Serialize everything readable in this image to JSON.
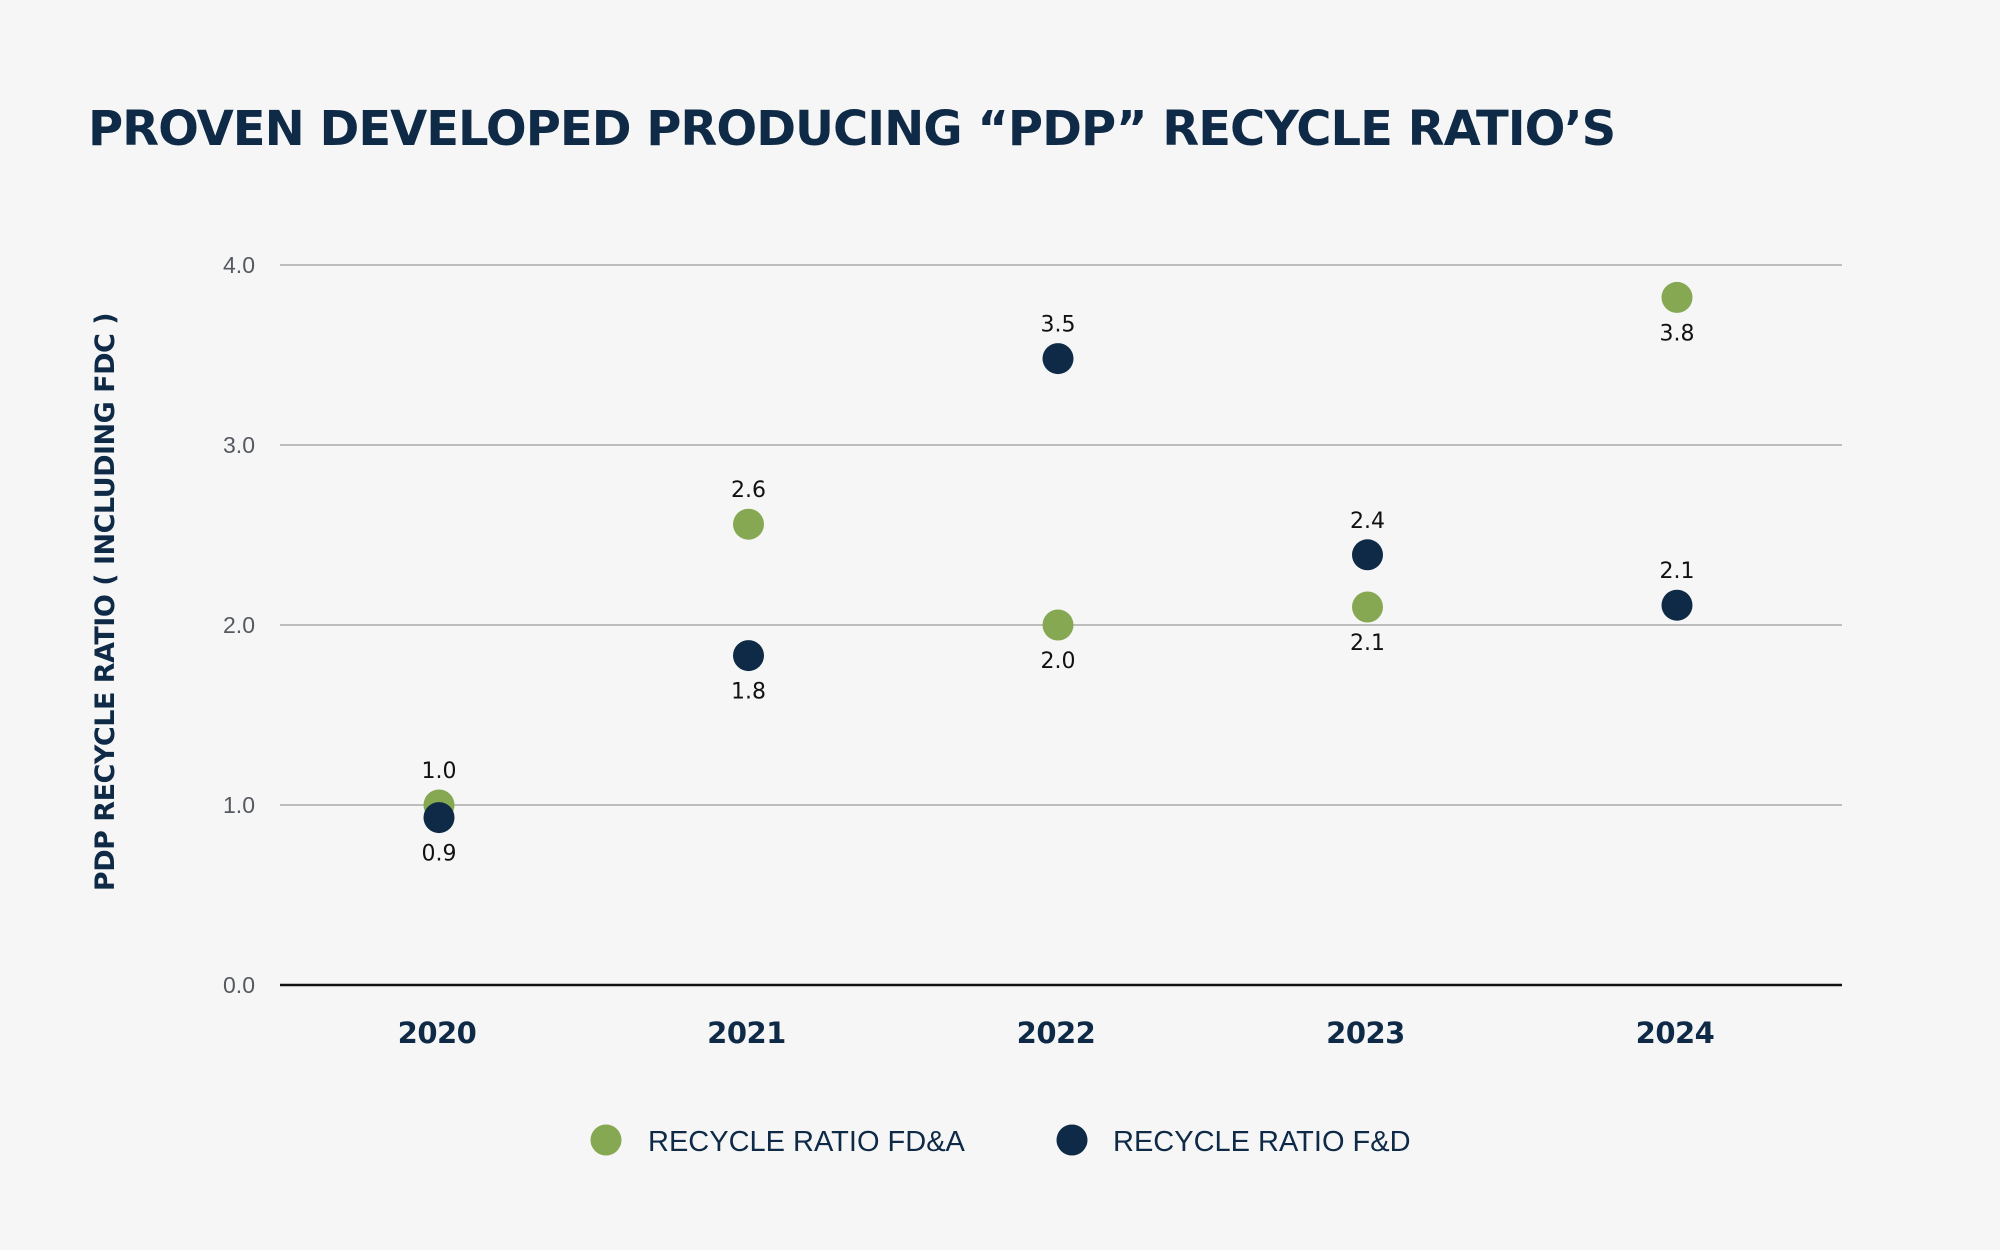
{
  "chart_data": {
    "type": "scatter",
    "title": "PROVEN DEVELOPED PRODUCING “PDP” RECYCLE RATIO’S",
    "xlabel": "",
    "ylabel": "PDP RECYCLE RATIO ( INCLUDING FDC )",
    "categories": [
      "2020",
      "2021",
      "2022",
      "2023",
      "2024"
    ],
    "ylim": [
      0,
      4
    ],
    "yticks": [
      "0.0",
      "1.0",
      "2.0",
      "3.0",
      "4.0"
    ],
    "grid": true,
    "legend_position": "bottom-center",
    "series": [
      {
        "name": "RECYCLE RATIO FD&A",
        "color": "#86a853",
        "values": [
          1.0,
          2.56,
          2.0,
          2.1,
          3.82
        ],
        "labels": [
          "1.0",
          "2.6",
          "2.0",
          "2.1",
          "3.8"
        ],
        "label_side": [
          "above",
          "above",
          "below",
          "below",
          "below"
        ]
      },
      {
        "name": "RECYCLE RATIO F&D",
        "color": "#0e2a47",
        "values": [
          0.93,
          1.83,
          3.48,
          2.39,
          2.11
        ],
        "labels": [
          "0.9",
          "1.8",
          "3.5",
          "2.4",
          "2.1"
        ],
        "label_side": [
          "below",
          "below",
          "above",
          "above",
          "above"
        ]
      }
    ]
  }
}
